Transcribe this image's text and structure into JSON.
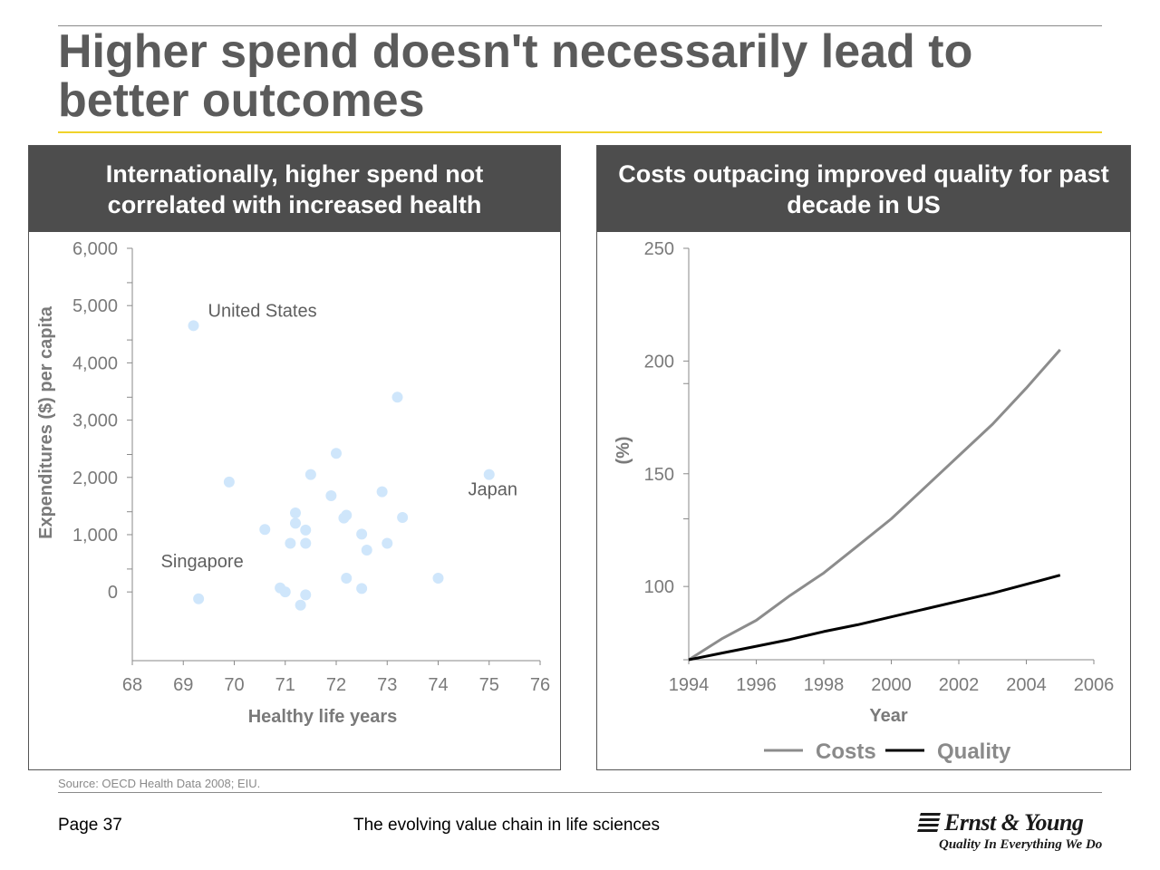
{
  "page": {
    "title": "Higher spend doesn't necessarily lead to better outcomes",
    "source": "Source: OECD Health Data 2008; EIU.",
    "page_number": "Page 37",
    "document_title": "The evolving value chain in life sciences",
    "logo": {
      "name": "Ernst & Young",
      "tagline": "Quality In Everything We Do"
    },
    "colors": {
      "accent_rule": "#f0d32a",
      "panel_header": "#4d4d4d",
      "title_text": "#5b5b5b"
    }
  },
  "chart_data": [
    {
      "type": "scatter",
      "header": "Internationally, higher spend not correlated with increased health",
      "xlabel": "Healthy life years",
      "ylabel": "Expenditures ($) per capita",
      "xlim": [
        68,
        76
      ],
      "ylim": [
        -1200,
        6000
      ],
      "x_ticks": [
        68,
        69,
        70,
        71,
        72,
        73,
        74,
        75,
        76
      ],
      "y_ticks": [
        0,
        1000,
        2000,
        3000,
        4000,
        5000,
        6000
      ],
      "y_tick_labels": [
        "0",
        "1,000",
        "2,000",
        "3,000",
        "4,000",
        "5,000",
        "6,000"
      ],
      "point_color": "#cfe6fb",
      "points": [
        {
          "x": 69.2,
          "y": 4650,
          "label": "United States"
        },
        {
          "x": 75.0,
          "y": 2050,
          "label": "Japan"
        },
        {
          "x": 69.3,
          "y": -120,
          "label": "Singapore"
        },
        {
          "x": 73.2,
          "y": 3400
        },
        {
          "x": 72.0,
          "y": 2420
        },
        {
          "x": 71.5,
          "y": 2050
        },
        {
          "x": 69.9,
          "y": 1920
        },
        {
          "x": 71.9,
          "y": 1680
        },
        {
          "x": 72.9,
          "y": 1750
        },
        {
          "x": 71.2,
          "y": 1380
        },
        {
          "x": 72.2,
          "y": 1340
        },
        {
          "x": 72.15,
          "y": 1290
        },
        {
          "x": 73.3,
          "y": 1300
        },
        {
          "x": 71.2,
          "y": 1200
        },
        {
          "x": 70.6,
          "y": 1090
        },
        {
          "x": 71.4,
          "y": 1080
        },
        {
          "x": 72.5,
          "y": 1010
        },
        {
          "x": 71.1,
          "y": 850
        },
        {
          "x": 71.4,
          "y": 850
        },
        {
          "x": 73.0,
          "y": 850
        },
        {
          "x": 72.6,
          "y": 730
        },
        {
          "x": 72.2,
          "y": 240
        },
        {
          "x": 74.0,
          "y": 240
        },
        {
          "x": 70.9,
          "y": 70
        },
        {
          "x": 71.0,
          "y": 0
        },
        {
          "x": 72.5,
          "y": 60
        },
        {
          "x": 71.4,
          "y": -50
        },
        {
          "x": 71.3,
          "y": -230
        }
      ]
    },
    {
      "type": "line",
      "header": "Costs outpacing improved quality for past decade in US",
      "xlabel": "Year",
      "ylabel": "(%)",
      "xlim": [
        1994,
        2006
      ],
      "ylim": [
        67.5,
        250
      ],
      "x_ticks": [
        1994,
        1996,
        1998,
        2000,
        2002,
        2004,
        2006
      ],
      "y_ticks": [
        100,
        150,
        200,
        250
      ],
      "y_minor_ticks": [
        67.5,
        130,
        190
      ],
      "legend_position": "bottom-center",
      "series": [
        {
          "name": "Costs",
          "color": "#8c8c8c",
          "x": [
            1994,
            1995,
            1996,
            1997,
            1998,
            1999,
            2000,
            2001,
            2002,
            2003,
            2004,
            2005
          ],
          "y": [
            67.5,
            77,
            85,
            96,
            106,
            118,
            130,
            144,
            158,
            172,
            188,
            205
          ]
        },
        {
          "name": "Quality",
          "color": "#000000",
          "x": [
            1994,
            1995,
            1996,
            1997,
            1998,
            1999,
            2000,
            2001,
            2002,
            2003,
            2004,
            2005
          ],
          "y": [
            67.5,
            70.5,
            73.5,
            76.5,
            80,
            83,
            86.5,
            90,
            93.5,
            97,
            101,
            105
          ]
        }
      ]
    }
  ]
}
